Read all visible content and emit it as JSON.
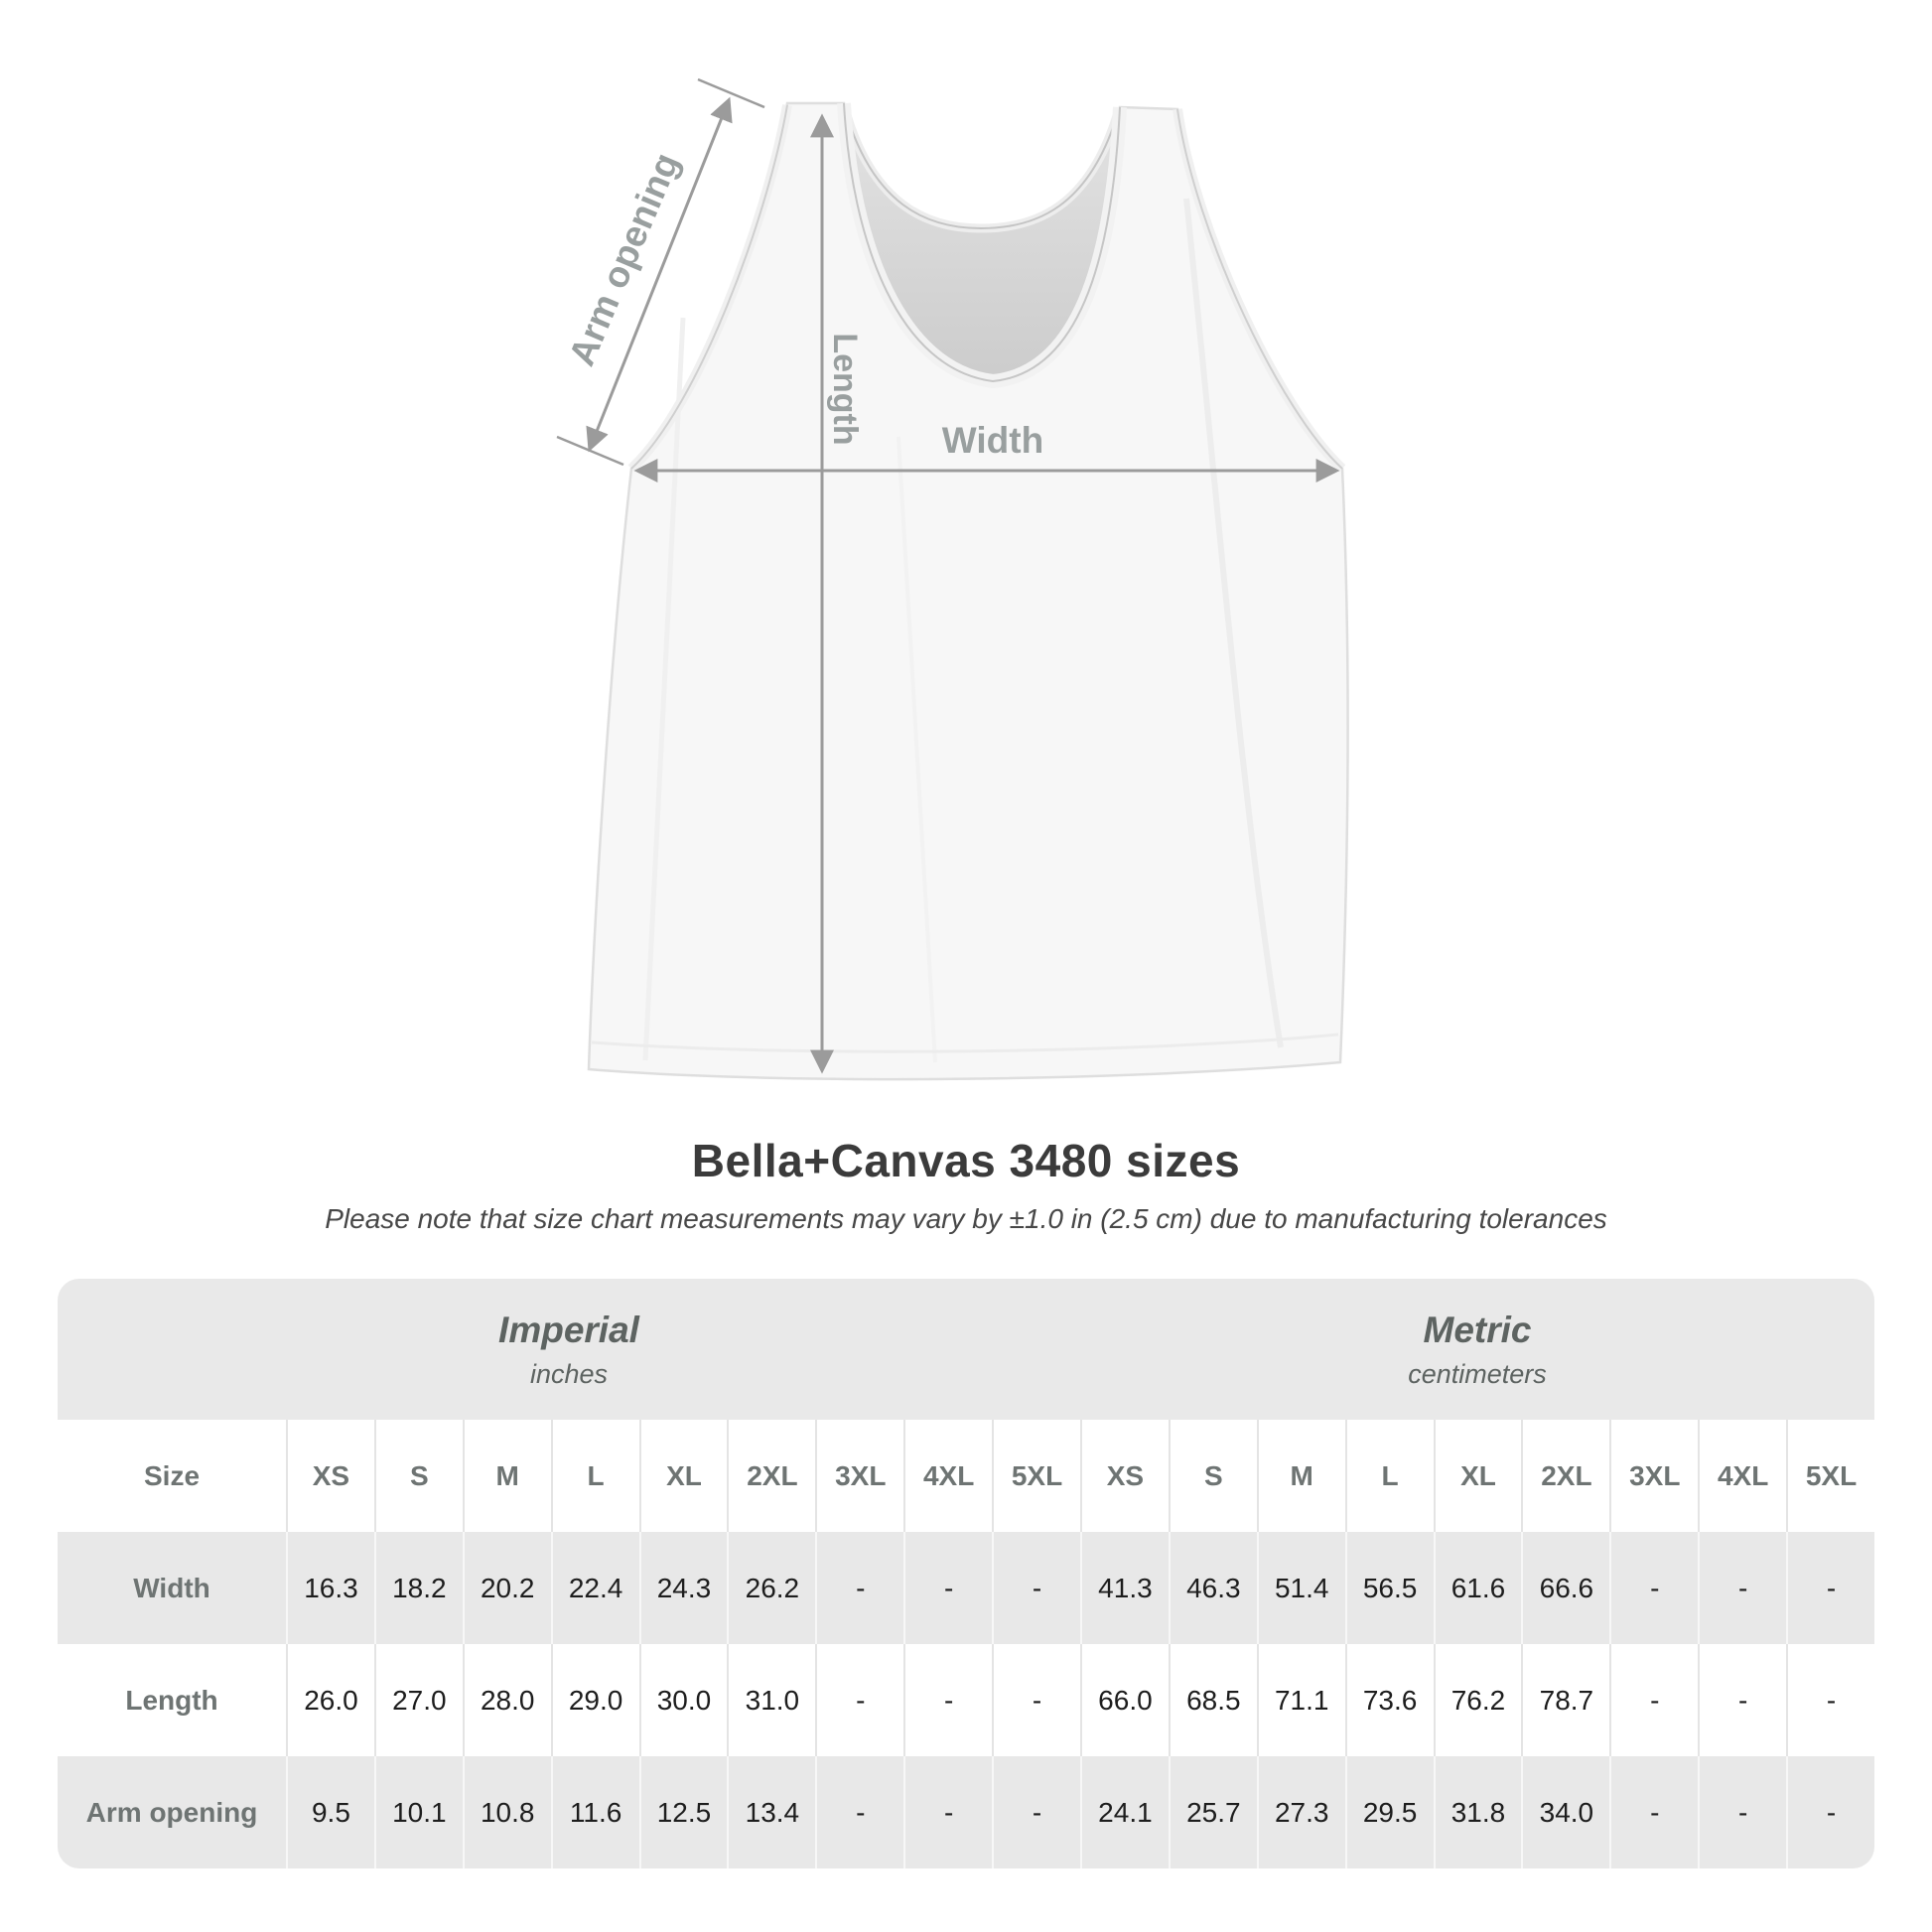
{
  "diagram": {
    "arm_opening_label": "Arm opening",
    "length_label": "Length",
    "width_label": "Width"
  },
  "title": "Bella+Canvas 3480 sizes",
  "subtitle": "Please note that size chart measurements may vary by ±1.0 in (2.5 cm) due to manufacturing tolerances",
  "table": {
    "unit_groups": [
      {
        "name": "Imperial",
        "unit": "inches"
      },
      {
        "name": "Metric",
        "unit": "centimeters"
      }
    ],
    "size_header": "Size",
    "sizes": [
      "XS",
      "S",
      "M",
      "L",
      "XL",
      "2XL",
      "3XL",
      "4XL",
      "5XL"
    ],
    "rows": [
      {
        "label": "Width",
        "imperial": [
          "16.3",
          "18.2",
          "20.2",
          "22.4",
          "24.3",
          "26.2",
          "-",
          "-",
          "-"
        ],
        "metric": [
          "41.3",
          "46.3",
          "51.4",
          "56.5",
          "61.6",
          "66.6",
          "-",
          "-",
          "-"
        ]
      },
      {
        "label": "Length",
        "imperial": [
          "26.0",
          "27.0",
          "28.0",
          "29.0",
          "30.0",
          "31.0",
          "-",
          "-",
          "-"
        ],
        "metric": [
          "66.0",
          "68.5",
          "71.1",
          "73.6",
          "76.2",
          "78.7",
          "-",
          "-",
          "-"
        ]
      },
      {
        "label": "Arm opening",
        "imperial": [
          "9.5",
          "10.1",
          "10.8",
          "11.6",
          "12.5",
          "13.4",
          "-",
          "-",
          "-"
        ],
        "metric": [
          "24.1",
          "25.7",
          "27.3",
          "29.5",
          "31.8",
          "34.0",
          "-",
          "-",
          "-"
        ]
      }
    ]
  },
  "colors": {
    "band_background": "#e9e9e9",
    "alt_row_background": "#e8e8e8",
    "header_text": "#6e7473",
    "value_text": "#1d1d1d",
    "title_text": "#3b3b3b",
    "arrow_gray": "#9b9b9b",
    "shirt_fill": "#f7f7f7"
  }
}
